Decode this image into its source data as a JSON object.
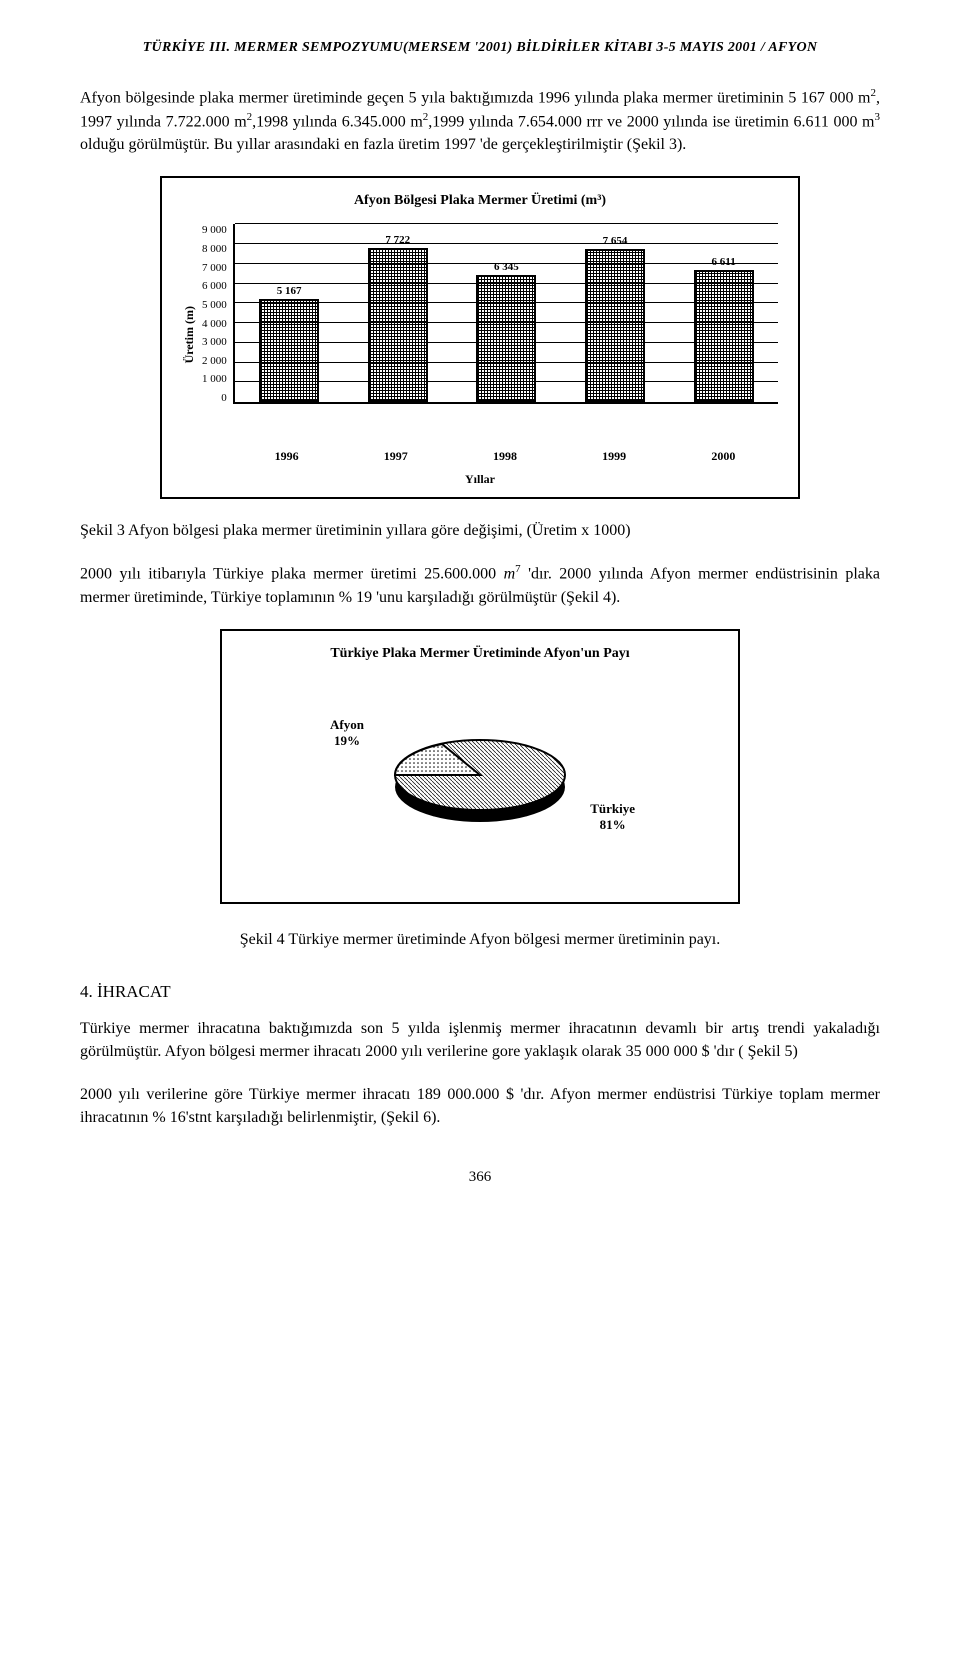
{
  "header": {
    "title": "TÜRKİYE III. MERMER SEMPOZYUMU(MERSEM '2001) BİLDİRİLER KİTABI 3-5 MAYIS 2001 / AFYON"
  },
  "paragraphs": {
    "p1_part1": "Afyon bölgesinde plaka mermer üretiminde geçen 5 yıla baktığımızda 1996 yılında plaka mermer üretiminin 5 167 000 m",
    "p1_sup1": "2",
    "p1_part2": ", 1997 yılında 7.722.000 m",
    "p1_sup2": "2",
    "p1_part3": ",1998 yılında 6.345.000 m",
    "p1_sup3": "2",
    "p1_part4": ",1999 yılında 7.654.000 rrr ve 2000 yılında ise üretimin 6.611 000 m",
    "p1_sup4": "3",
    "p1_part5": " olduğu görülmüştür. Bu yıllar arasındaki en fazla üretim 1997 'de gerçekleştirilmiştir (Şekil 3).",
    "p2_part1": "2000 yılı itibarıyla Türkiye plaka mermer üretimi 25.600.000 ",
    "p2_italic": "m",
    "p2_sup": "7",
    "p2_part2": " 'dır. 2000 yılında Afyon mermer endüstrisinin plaka mermer üretiminde, Türkiye toplamının % 19 'unu karşıladığı görülmüştür (Şekil 4).",
    "p3": "Türkiye mermer ihracatına baktığımızda son 5 yılda işlenmiş mermer ihracatının devamlı bir artış trendi yakaladığı görülmüştür. Afyon bölgesi mermer ihracatı 2000 yılı verilerine gore yaklaşık olarak 35 000 000 $ 'dır ( Şekil 5)",
    "p4": "2000 yılı verilerine göre Türkiye mermer ihracatı 189 000.000 $ 'dır. Afyon mermer endüstrisi Türkiye toplam mermer ihracatının % 16'stnt karşıladığı belirlenmiştir, (Şekil 6)."
  },
  "captions": {
    "fig3": "Şekil 3 Afyon bölgesi plaka mermer üretiminin yıllara göre değişimi, (Üretim x 1000)",
    "fig4": "Şekil 4 Türkiye mermer üretiminde Afyon bölgesi mermer üretiminin payı."
  },
  "section": {
    "heading": "4. İHRACAT"
  },
  "bar_chart": {
    "type": "bar",
    "title": "Afyon Bölgesi Plaka Mermer Üretimi (m³)",
    "ylabel": "Üretim (m)",
    "xlabel": "Yıllar",
    "categories": [
      "1996",
      "1997",
      "1998",
      "1999",
      "2000"
    ],
    "values": [
      5167,
      7722,
      6345,
      7654,
      6611
    ],
    "value_labels": [
      "5 167",
      "7 722",
      "6 345",
      "7 654",
      "6 611"
    ],
    "ylim": [
      0,
      9000
    ],
    "yticks": [
      "9 000",
      "8 000",
      "7 000",
      "6 000",
      "5 000",
      "4 000",
      "3 000",
      "2 000",
      "1 000",
      "0"
    ],
    "ytick_values": [
      9000,
      8000,
      7000,
      6000,
      5000,
      4000,
      3000,
      2000,
      1000,
      0
    ],
    "bar_color": "#ffffff",
    "bar_border": "#000000",
    "bar_pattern": "crosshatch",
    "background_color": "#ffffff",
    "grid_color": "#000000",
    "title_fontsize": 14,
    "label_fontsize": 12,
    "bar_width": 0.6
  },
  "pie_chart": {
    "type": "pie",
    "title": "Türkiye Plaka Mermer Üretiminde Afyon'un Payı",
    "slices": [
      {
        "label": "Afyon",
        "value": 19,
        "display": "Afyon\n19%",
        "color": "#ffffff",
        "pattern": "dots"
      },
      {
        "label": "Türkiye",
        "value": 81,
        "display": "Türkiye\n81%",
        "color": "#ffffff",
        "pattern": "lines"
      }
    ],
    "style_3d": true,
    "border_color": "#000000",
    "background_color": "#ffffff",
    "title_fontsize": 14,
    "label_fontsize": 13
  },
  "page_number": "366"
}
